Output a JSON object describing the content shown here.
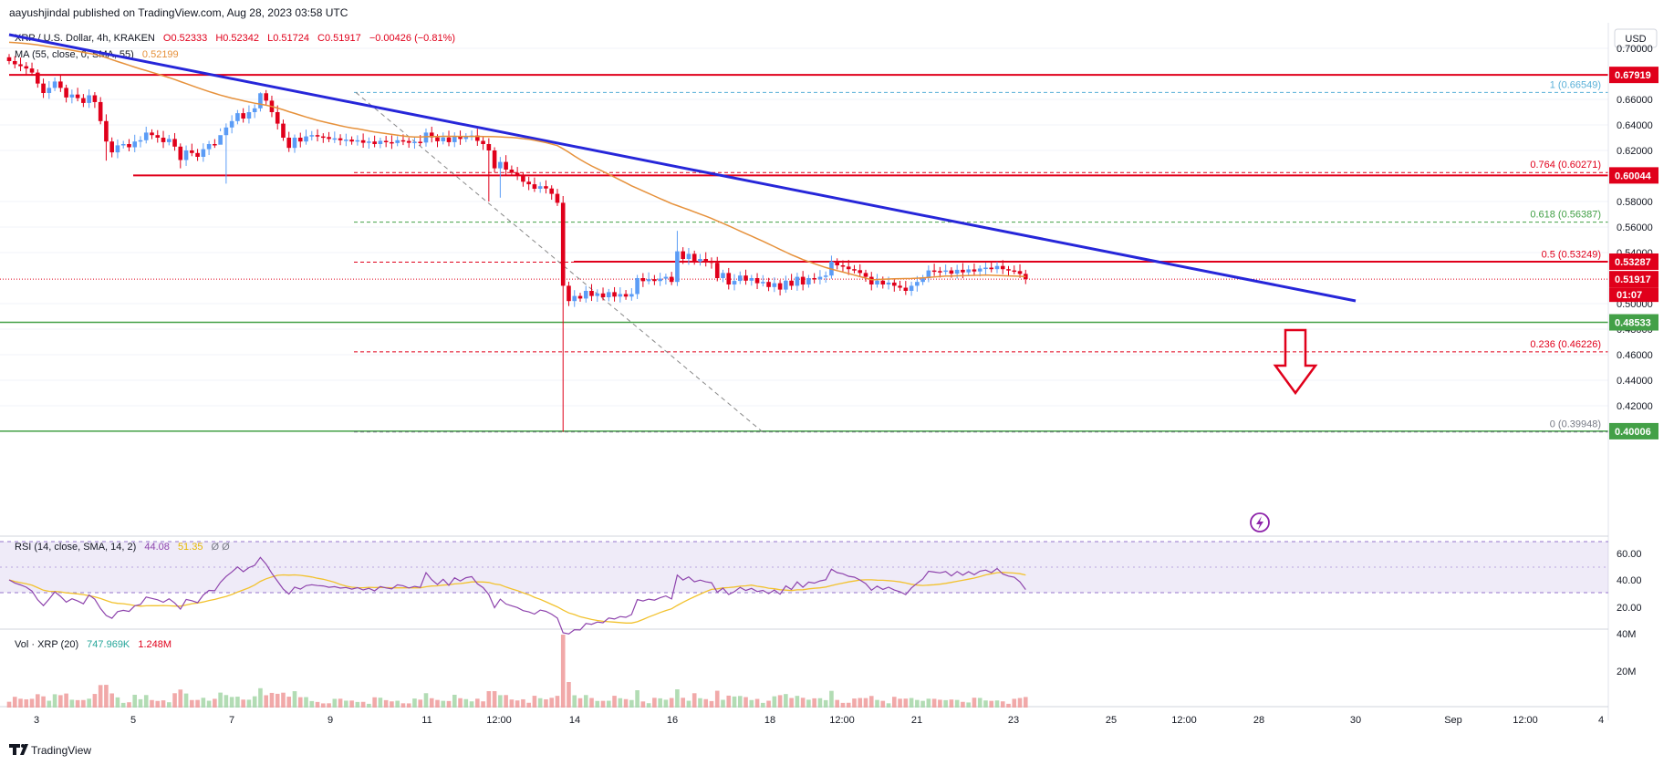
{
  "publisher": "aayushjindal published on TradingView.com, Aug 28, 2023 03:58 UTC",
  "currency": "USD",
  "legend": {
    "symbol": "XRP / U.S. Dollar, 4h, KRAKEN",
    "open": "O0.52333",
    "high": "H0.52342",
    "low": "L0.51724",
    "close": "C0.51917",
    "change": "−0.00426 (−0.81%)",
    "ma_label": "MA (55, close, 0, SMA, 55)",
    "ma_value": "0.52199"
  },
  "rsi_legend": {
    "label": "RSI (14, close, SMA, 14, 2)",
    "rsi": "44.08",
    "sma": "51.35",
    "extra": "Ø  Ø"
  },
  "vol_legend": {
    "label": "Vol · XRP (20)",
    "v1": "747.969K",
    "v2": "1.248M"
  },
  "brand": "TradingView",
  "countdown": "01:07",
  "colors": {
    "up": "#5b9cf6",
    "down": "#e0001b",
    "resistance": "#e0001b",
    "support": "#43a047",
    "trendline": "#2626d9",
    "ma": "#e6913b",
    "fib": "#5ab0d8",
    "rsi": "#8e44ad",
    "rsi_sma": "#f2c22e",
    "rsi_band": "#7e57c2"
  },
  "chart_data": {
    "type": "candlestick",
    "x_ticks": [
      "3",
      "5",
      "7",
      "9",
      "11",
      "12:00",
      "14",
      "16",
      "18",
      "12:00",
      "21",
      "23",
      "25",
      "12:00",
      "28",
      "30",
      "Sep",
      "12:00",
      "4"
    ],
    "y_ticks": [
      "0.70000",
      "0.66000",
      "0.64000",
      "0.62000",
      "0.58000",
      "0.56000",
      "0.54000",
      "0.50000",
      "0.48000",
      "0.46000",
      "0.44000",
      "0.42000"
    ],
    "ylim": [
      0.388,
      0.708
    ],
    "price_tags": [
      {
        "value": "0.67919",
        "kind": "resistance"
      },
      {
        "value": "0.60044",
        "kind": "resistance"
      },
      {
        "value": "0.53287",
        "kind": "resistance"
      },
      {
        "value": "0.51917",
        "kind": "last"
      },
      {
        "value": "0.48533",
        "kind": "support"
      },
      {
        "value": "0.40006",
        "kind": "support"
      }
    ],
    "fib_levels": [
      {
        "ratio": "1",
        "price": "(0.66549)"
      },
      {
        "ratio": "0.764",
        "price": "(0.60271)"
      },
      {
        "ratio": "0.618",
        "price": "(0.56387)"
      },
      {
        "ratio": "0.5",
        "price": "(0.53249)"
      },
      {
        "ratio": "0.236",
        "price": "(0.46226)"
      },
      {
        "ratio": "0",
        "price": "(0.39948)"
      }
    ],
    "closes": [
      0.69,
      0.6875,
      0.686,
      0.6842,
      0.681,
      0.6724,
      0.665,
      0.669,
      0.674,
      0.669,
      0.6615,
      0.6638,
      0.661,
      0.6572,
      0.6632,
      0.6579,
      0.643,
      0.627,
      0.6185,
      0.624,
      0.625,
      0.6225,
      0.627,
      0.628,
      0.634,
      0.632,
      0.63,
      0.6265,
      0.629,
      0.623,
      0.6125,
      0.62,
      0.618,
      0.615,
      0.621,
      0.625,
      0.6245,
      0.632,
      0.638,
      0.643,
      0.6492,
      0.645,
      0.65,
      0.653,
      0.6648,
      0.659,
      0.65,
      0.641,
      0.63,
      0.622,
      0.63,
      0.627,
      0.631,
      0.632,
      0.631,
      0.6305,
      0.629,
      0.6295,
      0.628,
      0.6285,
      0.627,
      0.628,
      0.626,
      0.627,
      0.625,
      0.6275,
      0.6265,
      0.6258,
      0.628,
      0.6274,
      0.626,
      0.6268,
      0.6262,
      0.634,
      0.6302,
      0.6272,
      0.6302,
      0.6265,
      0.631,
      0.629,
      0.631,
      0.6317,
      0.6275,
      0.625,
      0.62,
      0.606,
      0.611,
      0.605,
      0.6025,
      0.6,
      0.5955,
      0.5935,
      0.59,
      0.592,
      0.5902,
      0.586,
      0.579,
      0.514,
      0.502,
      0.506,
      0.504,
      0.51,
      0.506,
      0.508,
      0.505,
      0.509,
      0.5055,
      0.5075,
      0.5055,
      0.5075,
      0.52,
      0.5176,
      0.5192,
      0.5177,
      0.5196,
      0.521,
      0.517,
      0.541,
      0.535,
      0.539,
      0.533,
      0.535,
      0.533,
      0.532,
      0.52,
      0.524,
      0.515,
      0.5178,
      0.522,
      0.518,
      0.52,
      0.516,
      0.517,
      0.513,
      0.516,
      0.511,
      0.518,
      0.514,
      0.521,
      0.515,
      0.52,
      0.519,
      0.521,
      0.522,
      0.533,
      0.53,
      0.529,
      0.527,
      0.5262,
      0.524,
      0.521,
      0.515,
      0.518,
      0.515,
      0.5165,
      0.514,
      0.5125,
      0.51,
      0.514,
      0.517,
      0.52,
      0.526,
      0.5255,
      0.525,
      0.526,
      0.5235,
      0.5265,
      0.5245,
      0.5268,
      0.5252,
      0.5275,
      0.5282,
      0.527,
      0.5295,
      0.527,
      0.526,
      0.5255,
      0.5233,
      0.5192
    ]
  }
}
